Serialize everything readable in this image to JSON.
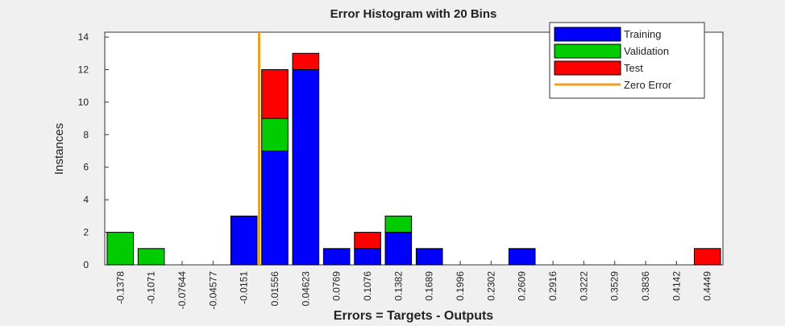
{
  "chart_data": {
    "type": "stacked_bar",
    "title": "Error Histogram with 20 Bins",
    "xlabel": "Errors = Targets - Outputs",
    "ylabel": "Instances",
    "x": [
      -0.1378,
      -0.1071,
      -0.07644,
      -0.04577,
      -0.0151,
      0.01556,
      0.04623,
      0.0769,
      0.1076,
      0.1382,
      0.1689,
      0.1996,
      0.2302,
      0.2609,
      0.2916,
      0.3222,
      0.3529,
      0.3836,
      0.4142,
      0.4449
    ],
    "series": [
      {
        "name": "Training",
        "color": "#0000ff",
        "values": [
          0,
          0,
          0,
          0,
          3,
          7,
          12,
          1,
          1,
          2,
          1,
          0,
          0,
          1,
          0,
          0,
          0,
          0,
          0,
          0
        ]
      },
      {
        "name": "Validation",
        "color": "#00cc00",
        "values": [
          2,
          1,
          0,
          0,
          0,
          2,
          0,
          0,
          0,
          1,
          0,
          0,
          0,
          0,
          0,
          0,
          0,
          0,
          0,
          0
        ]
      },
      {
        "name": "Test",
        "color": "#ff0000",
        "values": [
          0,
          0,
          0,
          0,
          0,
          3,
          1,
          0,
          1,
          0,
          0,
          0,
          0,
          0,
          0,
          0,
          0,
          0,
          0,
          1
        ]
      }
    ],
    "zero_error": {
      "name": "Zero Error",
      "value": 0,
      "color": "#f0a020"
    },
    "xlim": [
      -0.1532,
      0.4603
    ],
    "xticks": [
      -0.1378,
      -0.1071,
      -0.07644,
      -0.04577,
      -0.0151,
      0.01556,
      0.04623,
      0.0769,
      0.1076,
      0.1382,
      0.1689,
      0.1996,
      0.2302,
      0.2609,
      0.2916,
      0.3222,
      0.3529,
      0.3836,
      0.4142,
      0.4449
    ],
    "ylim": [
      0,
      14.3
    ],
    "yticks": [
      0,
      2,
      4,
      6,
      8,
      10,
      12,
      14
    ],
    "legend": "upper right"
  }
}
